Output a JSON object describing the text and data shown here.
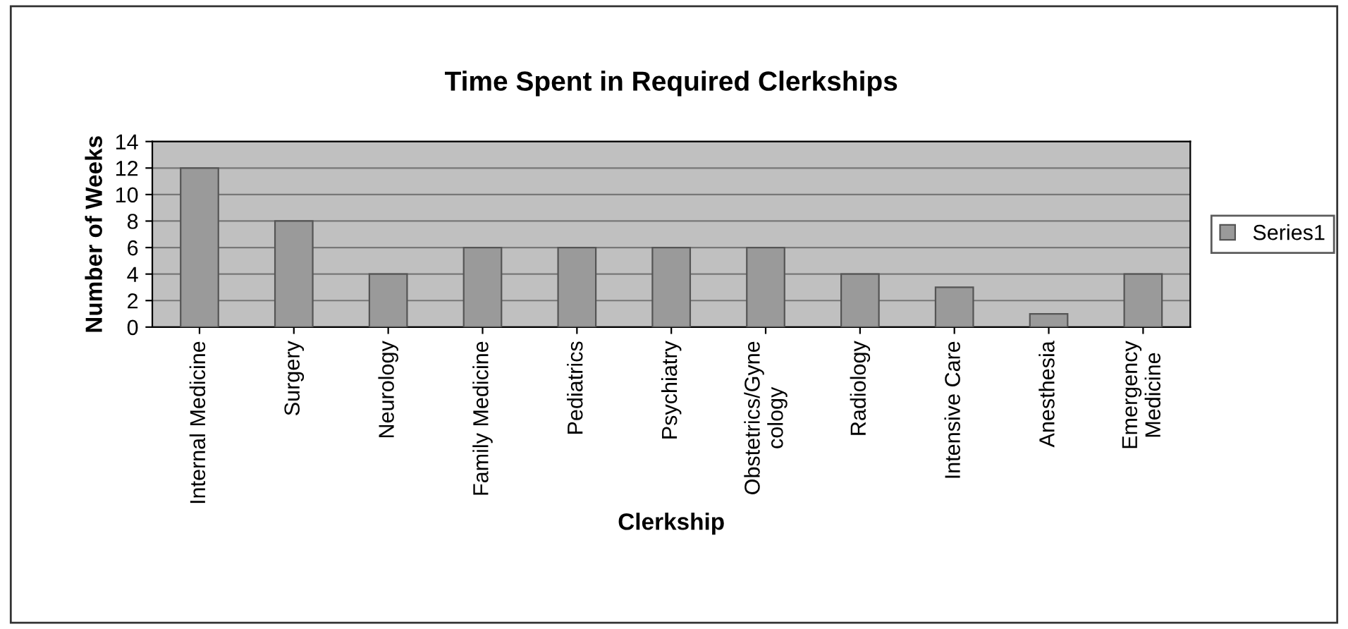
{
  "chart_data": {
    "type": "bar",
    "title": "Time Spent in Required Clerkships",
    "xlabel": "Clerkship",
    "ylabel": "Number of Weeks",
    "categories": [
      "Internal Medicine",
      "Surgery",
      "Neurology",
      "Family Medicine",
      "Pediatrics",
      "Psychiatry",
      "Obstetrics/Gyne\ncology",
      "Radiology",
      "Intensive Care",
      "Anesthesia",
      "Emergency\nMedicine"
    ],
    "series": [
      {
        "name": "Series1",
        "color": "#9a9a9a",
        "values": [
          12,
          8,
          4,
          6,
          6,
          6,
          6,
          4,
          3,
          1,
          4
        ]
      }
    ],
    "ylim": [
      0,
      14
    ],
    "yticks": [
      0,
      2,
      4,
      6,
      8,
      10,
      12,
      14
    ],
    "grid": "y",
    "legend": "right"
  }
}
